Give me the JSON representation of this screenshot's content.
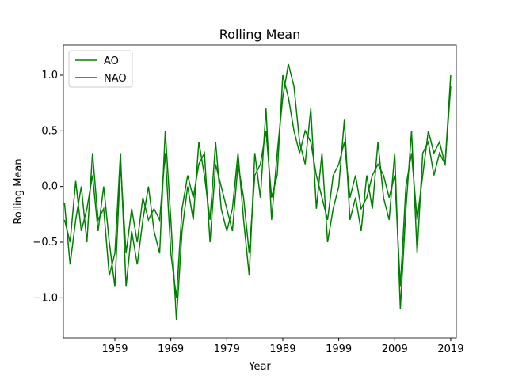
{
  "chart_data": {
    "type": "line",
    "title": "Rolling Mean",
    "x_label": "Year",
    "y_label": "Rolling Mean",
    "x": [
      1950,
      1951,
      1952,
      1953,
      1954,
      1955,
      1956,
      1957,
      1958,
      1959,
      1960,
      1961,
      1962,
      1963,
      1964,
      1965,
      1966,
      1967,
      1968,
      1969,
      1970,
      1971,
      1972,
      1973,
      1974,
      1975,
      1976,
      1977,
      1978,
      1979,
      1980,
      1981,
      1982,
      1983,
      1984,
      1985,
      1986,
      1987,
      1988,
      1989,
      1990,
      1991,
      1992,
      1993,
      1994,
      1995,
      1996,
      1997,
      1998,
      1999,
      2000,
      2001,
      2002,
      2003,
      2004,
      2005,
      2006,
      2007,
      2008,
      2009,
      2010,
      2011,
      2012,
      2013,
      2014,
      2015,
      2016,
      2017,
      2018,
      2019
    ],
    "series": [
      {
        "name": "AO",
        "color": "#008000",
        "values": [
          -0.15,
          -0.7,
          -0.3,
          0.0,
          -0.5,
          0.3,
          -0.3,
          -0.2,
          -0.8,
          -0.6,
          0.3,
          -0.9,
          -0.4,
          -0.7,
          -0.3,
          0.0,
          -0.4,
          -0.6,
          0.5,
          -0.3,
          -1.2,
          -0.4,
          0.0,
          -0.3,
          0.4,
          0.1,
          -0.3,
          0.4,
          -0.2,
          -0.4,
          -0.2,
          0.3,
          -0.3,
          -0.8,
          0.3,
          -0.1,
          0.7,
          -0.3,
          0.3,
          0.8,
          1.1,
          0.9,
          0.4,
          0.2,
          0.7,
          -0.2,
          0.3,
          -0.5,
          -0.2,
          0.0,
          0.6,
          -0.3,
          -0.1,
          -0.4,
          0.1,
          -0.2,
          0.4,
          -0.1,
          -0.3,
          0.3,
          -1.1,
          -0.2,
          0.5,
          -0.6,
          0.3,
          0.4,
          0.1,
          0.3,
          0.2,
          1.0
        ]
      },
      {
        "name": "NAO",
        "color": "#008000",
        "values": [
          -0.3,
          -0.5,
          0.05,
          -0.4,
          -0.2,
          0.1,
          -0.4,
          0.0,
          -0.5,
          -0.9,
          0.2,
          -0.6,
          -0.2,
          -0.5,
          -0.1,
          -0.3,
          -0.2,
          -0.3,
          0.3,
          -0.6,
          -1.0,
          -0.2,
          0.1,
          -0.1,
          0.2,
          0.3,
          -0.5,
          0.2,
          0.0,
          -0.2,
          -0.4,
          0.2,
          -0.1,
          -0.6,
          0.1,
          0.2,
          0.5,
          -0.1,
          0.1,
          1.0,
          0.8,
          0.5,
          0.3,
          0.5,
          0.4,
          0.1,
          -0.1,
          -0.3,
          0.1,
          0.2,
          0.4,
          -0.1,
          0.1,
          -0.2,
          -0.1,
          0.1,
          0.2,
          0.1,
          -0.1,
          0.1,
          -0.9,
          0.0,
          0.3,
          -0.3,
          0.1,
          0.5,
          0.3,
          0.4,
          0.2,
          0.9
        ]
      }
    ],
    "xlim": [
      1949.8,
      2020.0
    ],
    "ylim": [
      -1.36,
      1.27
    ],
    "xticks": [
      1959,
      1969,
      1979,
      1989,
      1999,
      2009,
      2019
    ],
    "yticks": [
      {
        "value": -1.0,
        "label": "−1.0"
      },
      {
        "value": -0.5,
        "label": "−0.5"
      },
      {
        "value": 0,
        "label": "0.0"
      },
      0.5,
      {
        "value": 1.0,
        "label": "1.0"
      }
    ],
    "legend": "upper left"
  }
}
